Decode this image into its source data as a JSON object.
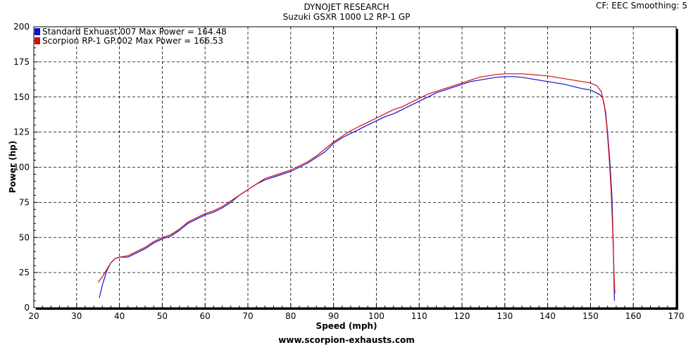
{
  "header": {
    "title": "DYNOJET RESEARCH",
    "subtitle": "Suzuki GSXR 1000 L2 RP-1 GP",
    "cf_info": "CF: EEC  Smoothing: 5"
  },
  "footer": {
    "text": "www.scorpion-exhausts.com"
  },
  "chart_data": {
    "type": "line",
    "title": "DYNOJET RESEARCH",
    "subtitle": "Suzuki GSXR 1000 L2 RP-1 GP",
    "xlabel": "Speed (mph)",
    "ylabel": "Power (hp)",
    "xlim": [
      20,
      170
    ],
    "ylim": [
      0,
      200
    ],
    "x_ticks": [
      20,
      30,
      40,
      50,
      60,
      70,
      80,
      90,
      100,
      110,
      120,
      130,
      140,
      150,
      160,
      170
    ],
    "y_ticks": [
      0,
      25,
      50,
      75,
      100,
      125,
      150,
      175,
      200
    ],
    "grid": true,
    "legend_position": "top-left",
    "series": [
      {
        "name": "Standard Exhuast.007 Max Power = 164.48",
        "color": "#1010d0",
        "points": [
          [
            35.3,
            7
          ],
          [
            36,
            16
          ],
          [
            37,
            26
          ],
          [
            38,
            32
          ],
          [
            39,
            35
          ],
          [
            40,
            36
          ],
          [
            41,
            36
          ],
          [
            42,
            36
          ],
          [
            44,
            39
          ],
          [
            46,
            42
          ],
          [
            48,
            46
          ],
          [
            50,
            49
          ],
          [
            52,
            51
          ],
          [
            54,
            55
          ],
          [
            56,
            60
          ],
          [
            58,
            63
          ],
          [
            60,
            66
          ],
          [
            62,
            68
          ],
          [
            64,
            71
          ],
          [
            66,
            75
          ],
          [
            68,
            80
          ],
          [
            70,
            84
          ],
          [
            72,
            88
          ],
          [
            74,
            91
          ],
          [
            76,
            93
          ],
          [
            78,
            95
          ],
          [
            80,
            97
          ],
          [
            82,
            100
          ],
          [
            84,
            103
          ],
          [
            86,
            107
          ],
          [
            88,
            111
          ],
          [
            90,
            117
          ],
          [
            92,
            121
          ],
          [
            94,
            124
          ],
          [
            96,
            127
          ],
          [
            98,
            130
          ],
          [
            100,
            133
          ],
          [
            102,
            136
          ],
          [
            104,
            138
          ],
          [
            106,
            141
          ],
          [
            108,
            144
          ],
          [
            110,
            147
          ],
          [
            112,
            150
          ],
          [
            114,
            153
          ],
          [
            116,
            155
          ],
          [
            118,
            157
          ],
          [
            120,
            159
          ],
          [
            122,
            161
          ],
          [
            124,
            162
          ],
          [
            126,
            163
          ],
          [
            128,
            164
          ],
          [
            130,
            164.5
          ],
          [
            132,
            164.5
          ],
          [
            134,
            164
          ],
          [
            136,
            163
          ],
          [
            138,
            162
          ],
          [
            140,
            161
          ],
          [
            142,
            160
          ],
          [
            144,
            159
          ],
          [
            146,
            157.5
          ],
          [
            148,
            156
          ],
          [
            150,
            155
          ],
          [
            152,
            152
          ],
          [
            152.8,
            150
          ],
          [
            153.5,
            140
          ],
          [
            154,
            125
          ],
          [
            154.5,
            105
          ],
          [
            155,
            80
          ],
          [
            155.3,
            50
          ],
          [
            155.5,
            20
          ],
          [
            155.6,
            5
          ]
        ]
      },
      {
        "name": "Scorpion RP-1 GP.002 Max Power = 166.53",
        "color": "#d01010",
        "points": [
          [
            35,
            18
          ],
          [
            36,
            22
          ],
          [
            37,
            27
          ],
          [
            38,
            32
          ],
          [
            39,
            35
          ],
          [
            40,
            36
          ],
          [
            41,
            36.5
          ],
          [
            42,
            37
          ],
          [
            44,
            40
          ],
          [
            46,
            43
          ],
          [
            48,
            47
          ],
          [
            50,
            50
          ],
          [
            52,
            52
          ],
          [
            54,
            56
          ],
          [
            56,
            61
          ],
          [
            58,
            64
          ],
          [
            60,
            67
          ],
          [
            62,
            69
          ],
          [
            64,
            72
          ],
          [
            66,
            76
          ],
          [
            68,
            80
          ],
          [
            70,
            84
          ],
          [
            72,
            88
          ],
          [
            74,
            92
          ],
          [
            76,
            94
          ],
          [
            78,
            96
          ],
          [
            80,
            98
          ],
          [
            82,
            101
          ],
          [
            84,
            104
          ],
          [
            86,
            108
          ],
          [
            88,
            113
          ],
          [
            90,
            118
          ],
          [
            92,
            122
          ],
          [
            94,
            126
          ],
          [
            96,
            129
          ],
          [
            98,
            132
          ],
          [
            100,
            135
          ],
          [
            102,
            138
          ],
          [
            104,
            141
          ],
          [
            106,
            143
          ],
          [
            108,
            146
          ],
          [
            110,
            149
          ],
          [
            112,
            152
          ],
          [
            114,
            154
          ],
          [
            116,
            156
          ],
          [
            118,
            158
          ],
          [
            120,
            160
          ],
          [
            122,
            162
          ],
          [
            124,
            164
          ],
          [
            126,
            165
          ],
          [
            128,
            166
          ],
          [
            130,
            166.5
          ],
          [
            132,
            166.5
          ],
          [
            134,
            166.5
          ],
          [
            136,
            166
          ],
          [
            138,
            165.5
          ],
          [
            140,
            165
          ],
          [
            142,
            164
          ],
          [
            144,
            163
          ],
          [
            146,
            162
          ],
          [
            148,
            161
          ],
          [
            150,
            160
          ],
          [
            151.5,
            158
          ],
          [
            152.5,
            154
          ],
          [
            153.2,
            145
          ],
          [
            153.8,
            130
          ],
          [
            154.3,
            110
          ],
          [
            154.8,
            85
          ],
          [
            155.2,
            55
          ],
          [
            155.5,
            25
          ],
          [
            155.7,
            10
          ]
        ]
      }
    ]
  }
}
